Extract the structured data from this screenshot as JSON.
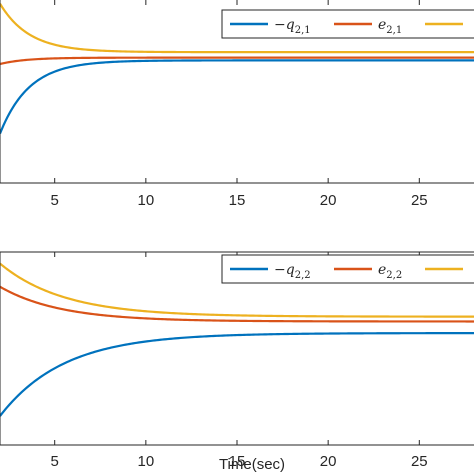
{
  "chart_data": [
    {
      "type": "line",
      "xlabel": "",
      "xlim": [
        2,
        28
      ],
      "ylim": [
        0,
        1
      ],
      "xticks": [
        5,
        10,
        15,
        20,
        25
      ],
      "xtick_labels": [
        "5",
        "10",
        "15",
        "20",
        "25"
      ],
      "grid": false,
      "legend": {
        "placement": "top-right",
        "entries": [
          {
            "name": "−q",
            "subscript": "2,1",
            "color": "#0072BD"
          },
          {
            "name": "e",
            "subscript": "2,1",
            "color": "#D95319"
          },
          {
            "name": "",
            "subscript": "",
            "color": "#EDB120"
          }
        ]
      },
      "series": [
        {
          "name": "−q₂,₁",
          "color": "#0072BD",
          "start": 0.27,
          "final": 0.67,
          "tau": 1.6
        },
        {
          "name": "e₂,₁",
          "color": "#D95319",
          "start": 0.65,
          "final": 0.685,
          "tau": 1.4
        },
        {
          "name": "",
          "color": "#EDB120",
          "start": 0.98,
          "final": 0.715,
          "tau": 1.6
        }
      ]
    },
    {
      "type": "line",
      "xlabel": "Time(sec)",
      "xlim": [
        2,
        28
      ],
      "ylim": [
        0,
        1
      ],
      "xticks": [
        5,
        10,
        15,
        20,
        25
      ],
      "xtick_labels": [
        "5",
        "10",
        "15",
        "20",
        "25"
      ],
      "grid": false,
      "legend": {
        "placement": "top-right",
        "entries": [
          {
            "name": "−q",
            "subscript": "2,2",
            "color": "#0072BD"
          },
          {
            "name": "e",
            "subscript": "2,2",
            "color": "#D95319"
          },
          {
            "name": "",
            "subscript": "",
            "color": "#EDB120"
          }
        ]
      },
      "series": [
        {
          "name": "−q₂,₂",
          "color": "#0072BD",
          "start": 0.15,
          "final": 0.58,
          "tau": 3.5
        },
        {
          "name": "e₂,₂",
          "color": "#D95319",
          "start": 0.82,
          "final": 0.64,
          "tau": 3.3
        },
        {
          "name": "",
          "color": "#EDB120",
          "start": 0.94,
          "final": 0.665,
          "tau": 3.5
        }
      ]
    }
  ]
}
